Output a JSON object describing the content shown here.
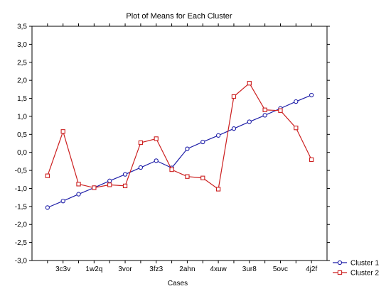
{
  "chart_data": {
    "type": "line",
    "title": "Plot of Means for Each Cluster",
    "xlabel": "Cases",
    "ylabel": "",
    "ylim": [
      -3.0,
      3.5
    ],
    "yticks": [
      "-3,0",
      "-2,5",
      "-2,0",
      "-1,5",
      "-1,0",
      "-0,5",
      "0,0",
      "0,5",
      "1,0",
      "1,5",
      "2,0",
      "2,5",
      "3,0",
      "3,5"
    ],
    "x_tick_labels": [
      "3c3v",
      "1w2q",
      "3vor",
      "3fz3",
      "2ahn",
      "4xuw",
      "3ur8",
      "5ovc",
      "4j2f"
    ],
    "point_count": 18,
    "grid": false,
    "legend_position": "bottom-right",
    "series": [
      {
        "name": "Cluster  1",
        "color": "#1f1fa8",
        "marker": "circle",
        "values": [
          -1.53,
          -1.35,
          -1.16,
          -0.98,
          -0.79,
          -0.61,
          -0.42,
          -0.23,
          -0.43,
          0.1,
          0.29,
          0.47,
          0.66,
          0.85,
          1.03,
          1.22,
          1.41,
          1.59
        ]
      },
      {
        "name": "Cluster  2",
        "color": "#cc1f1f",
        "marker": "square",
        "values": [
          -0.65,
          0.58,
          -0.88,
          -0.98,
          -0.9,
          -0.93,
          0.27,
          0.38,
          -0.48,
          -0.67,
          -0.71,
          -1.02,
          1.55,
          1.92,
          1.18,
          1.16,
          0.68,
          -0.2
        ]
      }
    ]
  }
}
